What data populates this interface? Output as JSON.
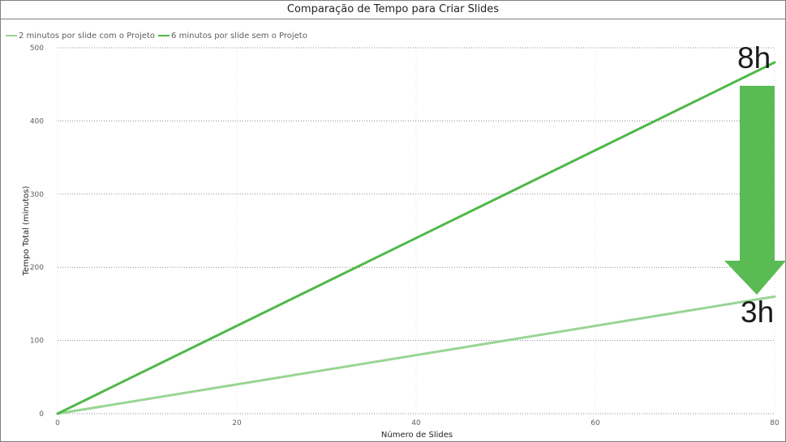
{
  "chart_data": {
    "type": "line",
    "title": "Comparação de Tempo para Criar Slides",
    "xlabel": "Número de Slides",
    "ylabel": "Tempo Total (minutos)",
    "xlim": [
      0,
      80
    ],
    "ylim": [
      0,
      500
    ],
    "x_ticks": [
      "0",
      "20",
      "40",
      "60",
      "80"
    ],
    "y_ticks": [
      "0",
      "100",
      "200",
      "300",
      "400",
      "500"
    ],
    "grid": true,
    "legend_position": "top-left",
    "series": [
      {
        "name": "2 minutos por slide com o Projeto",
        "color": "#99d594",
        "x": [
          0,
          80
        ],
        "y": [
          0,
          160
        ]
      },
      {
        "name": "6 minutos por slide sem o Projeto",
        "color": "#4fb848",
        "x": [
          0,
          80
        ],
        "y": [
          0,
          480
        ]
      }
    ],
    "annotations": [
      {
        "text": "8h",
        "kind": "label"
      },
      {
        "text": "3h",
        "kind": "label"
      },
      {
        "kind": "arrow",
        "direction": "down",
        "color": "#5abb54"
      }
    ]
  }
}
